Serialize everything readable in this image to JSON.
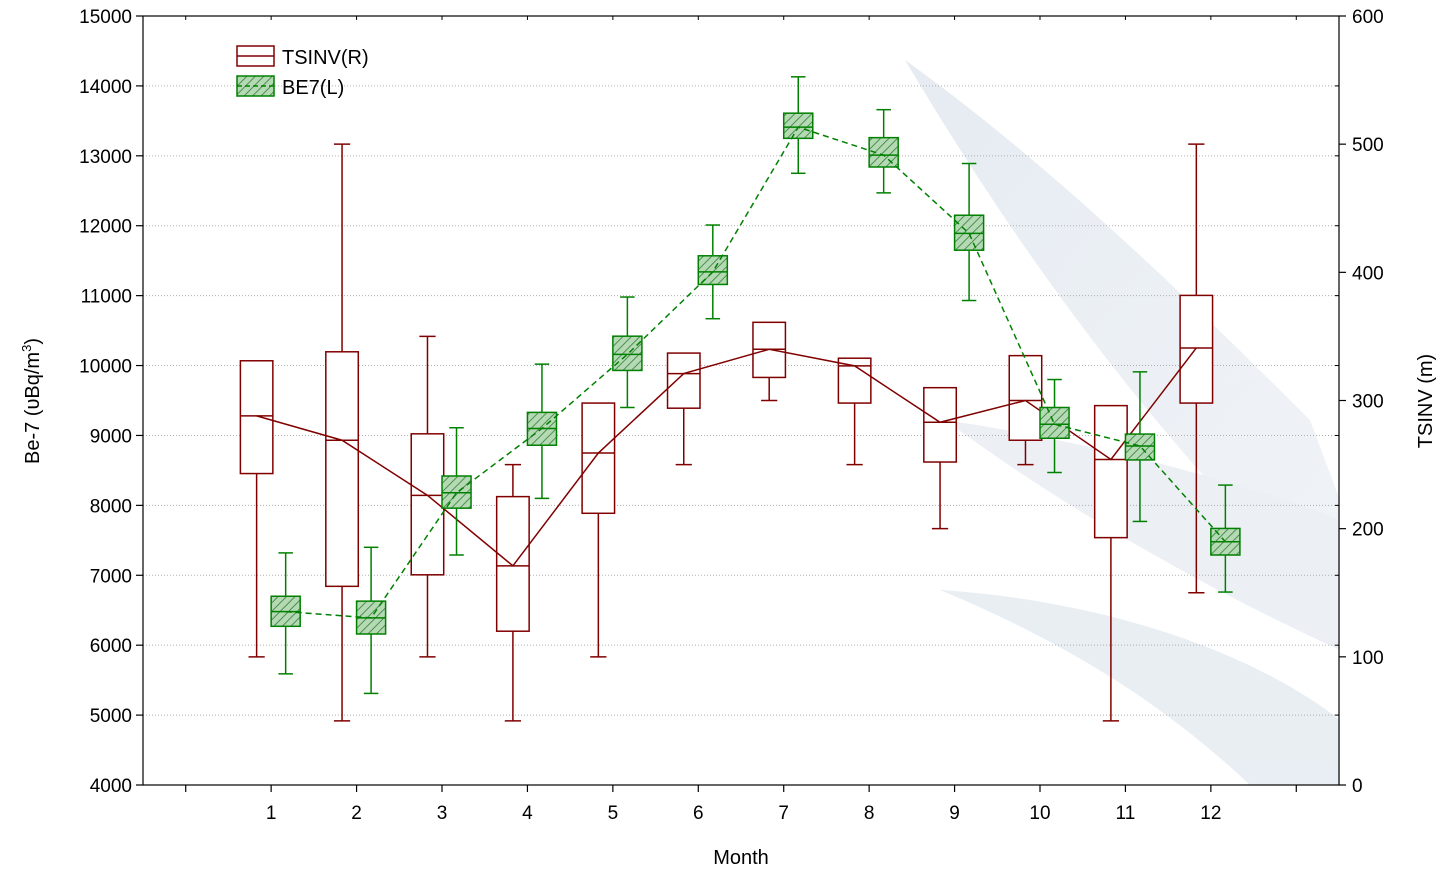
{
  "chart_data": {
    "type": "box",
    "xlabel": "Month",
    "ylabel_left_prefix": "Be-7 (",
    "ylabel_left_unit": "υBq/m",
    "ylabel_left_sup": "3",
    "ylabel_left_suffix": ")",
    "ylabel_right": "TSINV (m)",
    "categories": [
      "1",
      "2",
      "3",
      "4",
      "5",
      "6",
      "7",
      "8",
      "9",
      "10",
      "11",
      "12"
    ],
    "x_range": [
      -0.5,
      13.5
    ],
    "ylim_left": [
      4000,
      15000
    ],
    "yticks_left": [
      4000,
      5000,
      6000,
      7000,
      8000,
      9000,
      10000,
      11000,
      12000,
      13000,
      14000,
      15000
    ],
    "ylim_right": [
      0,
      600
    ],
    "yticks_right": [
      0,
      100,
      200,
      300,
      400,
      500,
      600
    ],
    "grid": true,
    "legend_position": "top-left",
    "series": [
      {
        "name": "TSINV(R)",
        "axis": "right",
        "color": "#800000",
        "line_style": "solid",
        "box_fill": "none",
        "median": [
          288,
          269,
          226,
          171,
          259,
          321,
          340,
          327,
          283,
          300,
          254,
          341
        ],
        "q1": [
          243,
          155,
          164,
          120,
          212,
          294,
          318,
          298,
          252,
          269,
          193,
          298
        ],
        "q3": [
          331,
          338,
          274,
          225,
          298,
          337,
          361,
          333,
          310,
          335,
          296,
          382
        ],
        "min": [
          100,
          50,
          100,
          50,
          100,
          250,
          300,
          250,
          200,
          250,
          50,
          150
        ],
        "max": [
          null,
          500,
          350,
          250,
          null,
          null,
          null,
          null,
          null,
          null,
          null,
          500
        ]
      },
      {
        "name": "BE7(L)",
        "axis": "left",
        "color": "#008000",
        "line_style": "dashed",
        "box_fill": "hatched",
        "median": [
          6480,
          6390,
          8180,
          9100,
          10160,
          11340,
          13410,
          13010,
          11890,
          9160,
          8850,
          7480
        ],
        "q1": [
          6270,
          6160,
          7960,
          8860,
          9930,
          11160,
          13250,
          12840,
          11650,
          8960,
          8650,
          7290
        ],
        "q3": [
          6700,
          6630,
          8420,
          9330,
          10420,
          11570,
          13610,
          13260,
          12150,
          9400,
          9020,
          7670
        ],
        "min": [
          5590,
          5310,
          7290,
          8100,
          9400,
          10670,
          12750,
          12470,
          10930,
          8470,
          7770,
          6760
        ],
        "max": [
          7320,
          7400,
          9110,
          10020,
          10980,
          12010,
          14130,
          13660,
          12890,
          9800,
          9910,
          8290
        ]
      }
    ]
  }
}
